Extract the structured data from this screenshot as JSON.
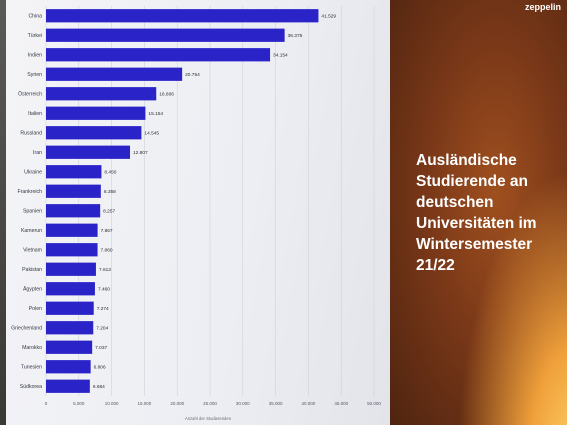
{
  "brand": {
    "logo_text": "zeppelin"
  },
  "headline_lines": [
    "Ausländische",
    "Studierende an",
    "deutschen",
    "Universitäten im",
    "Wintersemester",
    "21/22"
  ],
  "colors": {
    "bar": "#2a24c8",
    "grid": "#c9ccd6"
  },
  "chart_data": {
    "type": "bar",
    "orientation": "horizontal",
    "categories": [
      "China",
      "Türkei",
      "Indien",
      "Syrien",
      "Österreich",
      "Italien",
      "Russland",
      "Iran",
      "Ukraine",
      "Frankreich",
      "Spanien",
      "Kamerun",
      "Vietnam",
      "Pakistan",
      "Ägypten",
      "Polen",
      "Griechenland",
      "Marokko",
      "Tunesien",
      "Südkorea"
    ],
    "values": [
      41529,
      36375,
      34154,
      20754,
      16806,
      15154,
      14545,
      12807,
      8450,
      8358,
      8257,
      7867,
      7860,
      7613,
      7460,
      7274,
      7204,
      7037,
      6806,
      6684
    ],
    "value_labels": [
      "41.529",
      "36.375",
      "34.154",
      "20.754",
      "16.806",
      "15.154",
      "14.545",
      "12.807",
      "8.450",
      "8.358",
      "8.257",
      "7.867",
      "7.860",
      "7.613",
      "7.460",
      "7.274",
      "7.204",
      "7.037",
      "6.806",
      "6.684"
    ],
    "xlim": [
      0,
      50000
    ],
    "x_ticks": [
      0,
      5000,
      10000,
      15000,
      20000,
      25000,
      30000,
      35000,
      40000,
      45000,
      50000
    ],
    "x_tick_labels": [
      "0",
      "5.000",
      "10.000",
      "15.000",
      "20.000",
      "25.000",
      "30.000",
      "35.000",
      "40.000",
      "45.000",
      "50.000"
    ],
    "xlabel": "Anzahl der Studierenden",
    "grid": true
  }
}
